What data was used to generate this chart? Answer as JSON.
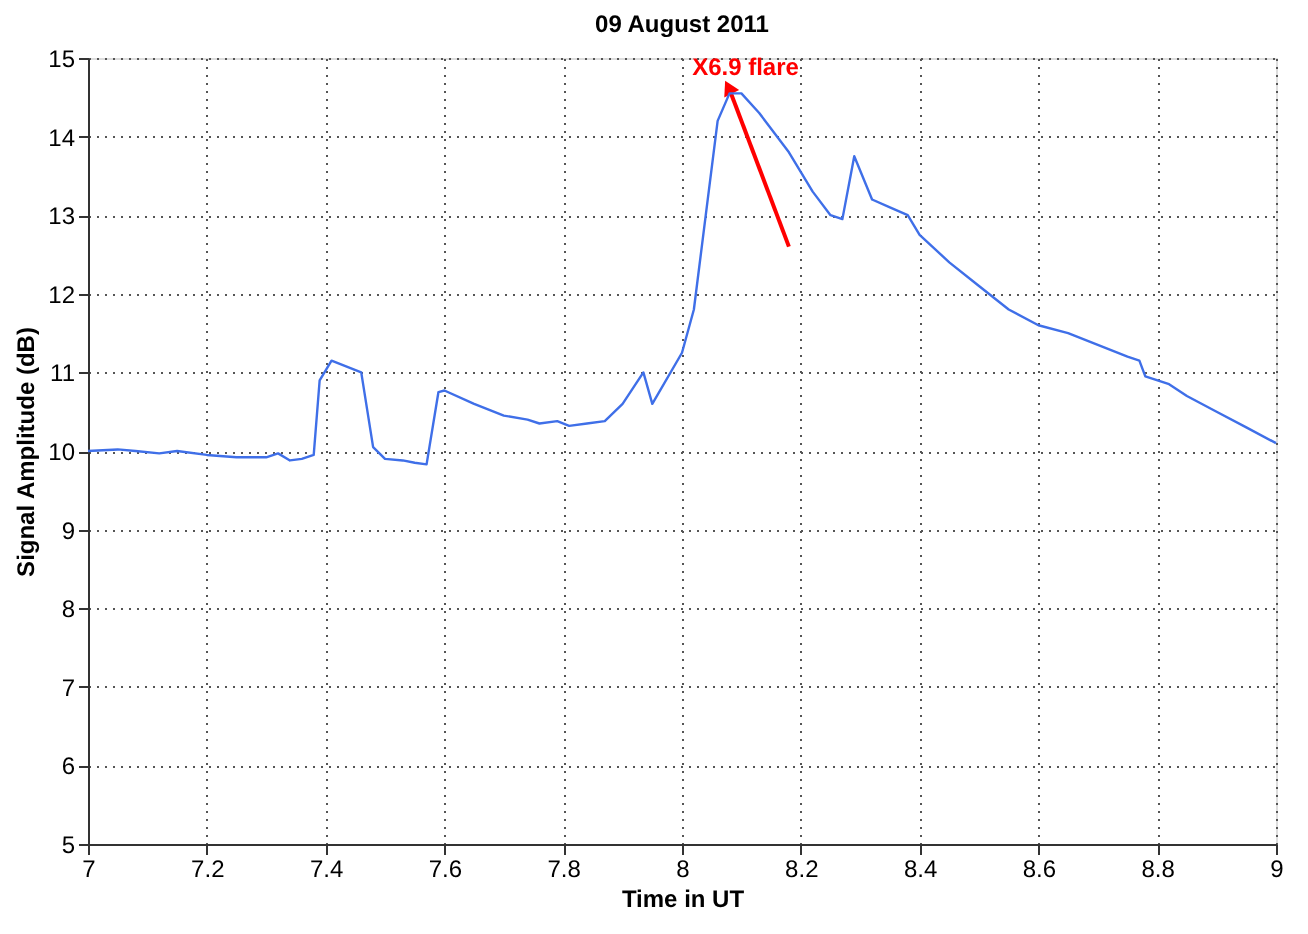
{
  "chart_data": {
    "type": "line",
    "title": "09 August 2011",
    "xlabel": "Time in UT",
    "ylabel": "Signal Amplitude (dB)",
    "x": [
      7.0,
      7.05,
      7.08,
      7.12,
      7.15,
      7.2,
      7.25,
      7.3,
      7.32,
      7.34,
      7.36,
      7.38,
      7.39,
      7.41,
      7.46,
      7.48,
      7.5,
      7.53,
      7.55,
      7.57,
      7.59,
      7.6,
      7.65,
      7.7,
      7.74,
      7.76,
      7.79,
      7.81,
      7.84,
      7.87,
      7.9,
      7.935,
      7.95,
      8.0,
      8.02,
      8.04,
      8.06,
      8.08,
      8.1,
      8.13,
      8.18,
      8.22,
      8.25,
      8.27,
      8.29,
      8.32,
      8.35,
      8.38,
      8.4,
      8.45,
      8.5,
      8.55,
      8.6,
      8.65,
      8.7,
      8.75,
      8.77,
      8.78,
      8.82,
      8.85,
      8.9,
      8.95,
      9.0
    ],
    "series": [
      {
        "color": "#3f6fe8",
        "values": [
          10.0,
          10.02,
          10.0,
          9.97,
          10.0,
          9.95,
          9.92,
          9.92,
          9.97,
          9.88,
          9.9,
          9.95,
          10.9,
          11.15,
          11.0,
          10.05,
          9.9,
          9.88,
          9.85,
          9.83,
          10.75,
          10.77,
          10.6,
          10.45,
          10.4,
          10.35,
          10.38,
          10.32,
          10.35,
          10.38,
          10.6,
          11.0,
          10.6,
          11.25,
          11.8,
          13.0,
          14.2,
          14.55,
          14.55,
          14.3,
          13.8,
          13.3,
          13.0,
          12.95,
          13.75,
          13.2,
          13.1,
          13.0,
          12.75,
          12.4,
          12.1,
          11.8,
          11.6,
          11.5,
          11.35,
          11.2,
          11.15,
          10.95,
          10.85,
          10.7,
          10.5,
          10.3,
          10.1
        ]
      }
    ],
    "annotations": [
      {
        "text": "X6.9 flare",
        "x": 8.08,
        "y": 14.6
      }
    ],
    "xlim": [
      7,
      9
    ],
    "xticks": [
      7,
      7.2,
      7.4,
      7.6,
      7.8,
      8,
      8.2,
      8.4,
      8.6,
      8.8,
      9
    ],
    "ylim": [
      5,
      15
    ],
    "yticks": [
      5,
      6,
      7,
      8,
      9,
      10,
      11,
      12,
      13,
      14,
      15
    ],
    "grid": true,
    "line_style": "solid",
    "marker": "none"
  }
}
